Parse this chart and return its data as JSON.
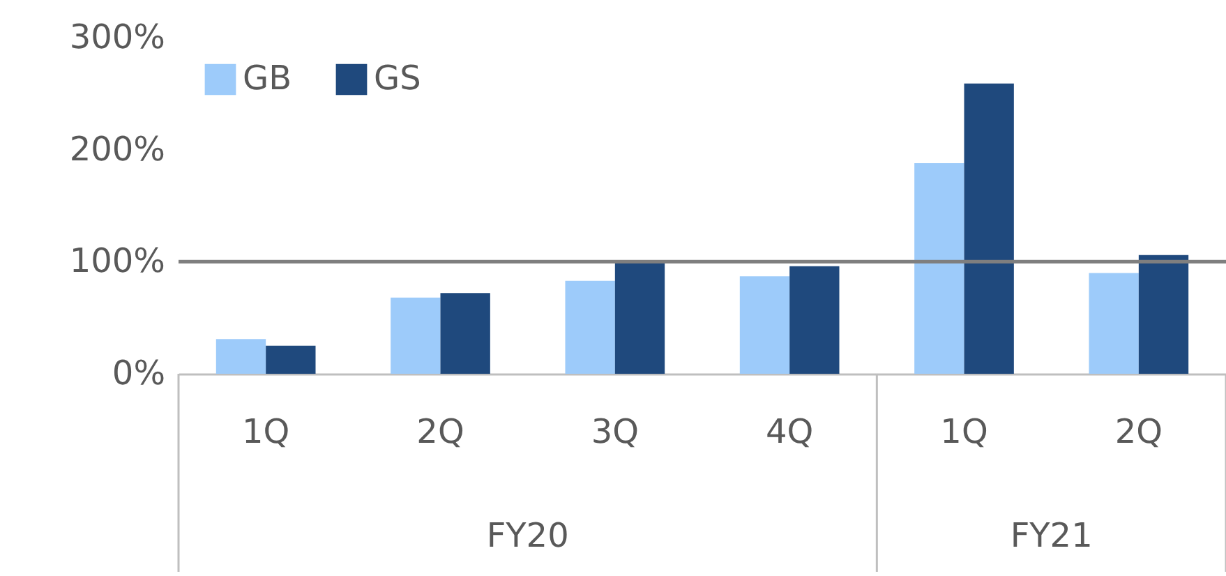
{
  "chart_data": {
    "type": "bar",
    "categories": [
      "1Q",
      "2Q",
      "3Q",
      "4Q",
      "1Q",
      "2Q"
    ],
    "series": [
      {
        "name": "GB",
        "color": "#9dcbfa",
        "values": [
          31,
          68,
          83,
          87,
          188,
          90
        ]
      },
      {
        "name": "GS",
        "color": "#1f497d",
        "values": [
          25,
          72,
          100,
          96,
          259,
          106
        ]
      }
    ],
    "ylim": [
      0,
      300
    ],
    "yticks": [
      {
        "value": 0,
        "label": "0%"
      },
      {
        "value": 100,
        "label": "100%"
      },
      {
        "value": 200,
        "label": "200%"
      },
      {
        "value": 300,
        "label": "300%"
      }
    ],
    "ref_lines": [
      {
        "axis": "y",
        "value": 100,
        "color": "#7f7f7f"
      }
    ],
    "annotations": [
      "FY20",
      "FY21"
    ],
    "legend": "top left",
    "grid": false
  }
}
